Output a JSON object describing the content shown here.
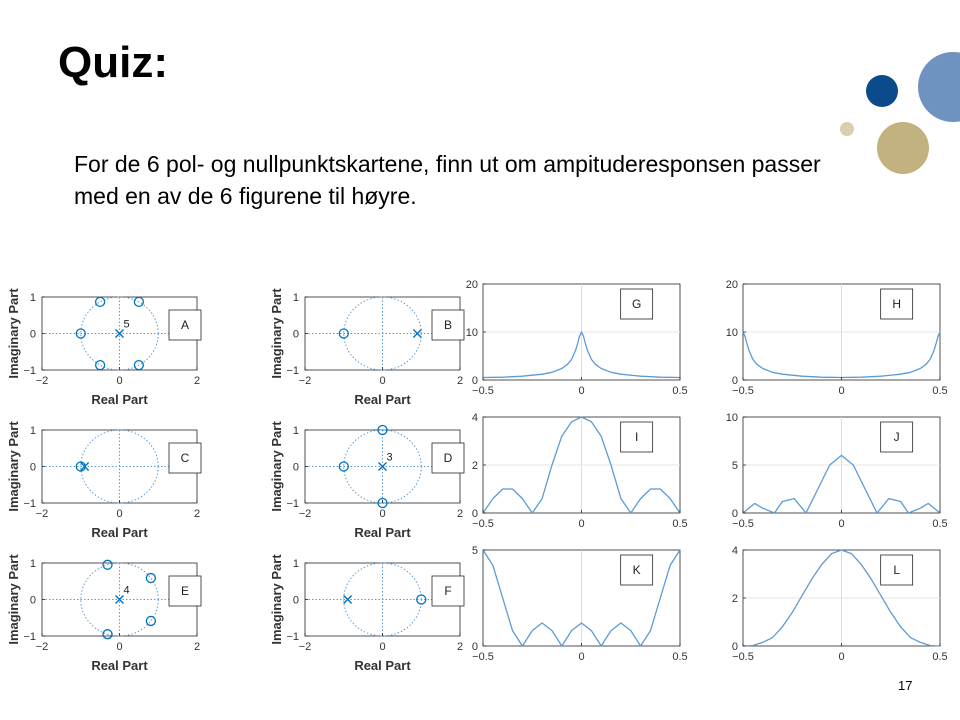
{
  "slide": {
    "title": "Quiz:",
    "instruction": "For de 6 pol- og nullpunktskartene, finn ut om ampituderesponsen passer med en av de 6 figurene til høyre.",
    "page_number": "17"
  },
  "colors": {
    "deco_dark": "#0b4a8b",
    "deco_light": "#6f93c0",
    "deco_tan": "#c2b280",
    "deco_tan_light": "#d8cfae",
    "plot": "#5b9bd5",
    "marker": "#0072bd"
  },
  "chart_data": [
    {
      "type": "pole-zero",
      "label": "A",
      "xlabel": "Real Part",
      "ylabel": "Imaginary Part",
      "xlim": [
        -2,
        2
      ],
      "ylim": [
        -1,
        1
      ],
      "xticks": [
        -2,
        0,
        2
      ],
      "yticks": [
        -1,
        0,
        1
      ],
      "zeros": [
        [
          -1,
          0
        ],
        [
          -0.5,
          0.866
        ],
        [
          0.5,
          0.866
        ],
        [
          0.5,
          -0.866
        ],
        [
          -0.5,
          -0.866
        ]
      ],
      "poles": [
        [
          0,
          0
        ]
      ],
      "pole_multiplicity": "5"
    },
    {
      "type": "pole-zero",
      "label": "B",
      "xlabel": "Real Part",
      "ylabel": "Imaginary Part",
      "xlim": [
        -2,
        2
      ],
      "ylim": [
        -1,
        1
      ],
      "xticks": [
        -2,
        0,
        2
      ],
      "yticks": [
        -1,
        0,
        1
      ],
      "zeros": [
        [
          -1,
          0
        ]
      ],
      "poles": [
        [
          0.9,
          0
        ]
      ],
      "pole_multiplicity": ""
    },
    {
      "type": "pole-zero",
      "label": "C",
      "xlabel": "Real Part",
      "ylabel": "Imaginary Part",
      "xlim": [
        -2,
        2
      ],
      "ylim": [
        -1,
        1
      ],
      "xticks": [
        -2,
        0,
        2
      ],
      "yticks": [
        -1,
        0,
        1
      ],
      "zeros": [
        [
          -1,
          0
        ]
      ],
      "poles": [
        [
          -0.9,
          0
        ]
      ],
      "pole_multiplicity": ""
    },
    {
      "type": "pole-zero",
      "label": "D",
      "xlabel": "Real Part",
      "ylabel": "Imaginary Part",
      "xlim": [
        -2,
        2
      ],
      "ylim": [
        -1,
        1
      ],
      "xticks": [
        -2,
        0,
        2
      ],
      "yticks": [
        -1,
        0,
        1
      ],
      "zeros": [
        [
          -1,
          0
        ],
        [
          0,
          1
        ],
        [
          0,
          -1
        ]
      ],
      "poles": [
        [
          0,
          0
        ]
      ],
      "pole_multiplicity": "3"
    },
    {
      "type": "pole-zero",
      "label": "E",
      "xlabel": "Real Part",
      "ylabel": "Imaginary Part",
      "xlim": [
        -2,
        2
      ],
      "ylim": [
        -1,
        1
      ],
      "xticks": [
        -2,
        0,
        2
      ],
      "yticks": [
        -1,
        0,
        1
      ],
      "zeros": [
        [
          -0.309,
          0.951
        ],
        [
          0.809,
          0.588
        ],
        [
          0.809,
          -0.588
        ],
        [
          -0.309,
          -0.951
        ]
      ],
      "poles": [
        [
          0,
          0
        ]
      ],
      "pole_multiplicity": "4"
    },
    {
      "type": "pole-zero",
      "label": "F",
      "xlabel": "Real Part",
      "ylabel": "Imaginary Part",
      "xlim": [
        -2,
        2
      ],
      "ylim": [
        -1,
        1
      ],
      "xticks": [
        -2,
        0,
        2
      ],
      "yticks": [
        -1,
        0,
        1
      ],
      "zeros": [
        [
          1,
          0
        ]
      ],
      "poles": [
        [
          -0.9,
          0
        ]
      ],
      "pole_multiplicity": ""
    },
    {
      "type": "line",
      "label": "G",
      "xlim": [
        -0.5,
        0.5
      ],
      "ylim": [
        0,
        20
      ],
      "xticks": [
        -0.5,
        0,
        0.5
      ],
      "yticks": [
        0,
        10,
        20
      ],
      "x": [
        -0.5,
        -0.4,
        -0.3,
        -0.2,
        -0.15,
        -0.1,
        -0.07,
        -0.05,
        -0.03,
        -0.02,
        -0.01,
        0,
        0.01,
        0.02,
        0.03,
        0.05,
        0.07,
        0.1,
        0.15,
        0.2,
        0.3,
        0.4,
        0.5
      ],
      "y": [
        0.53,
        0.58,
        0.8,
        1.2,
        1.6,
        2.4,
        3.3,
        4.3,
        6.2,
        7.6,
        9.1,
        10,
        9.1,
        7.6,
        6.2,
        4.3,
        3.3,
        2.4,
        1.6,
        1.2,
        0.8,
        0.58,
        0.53
      ]
    },
    {
      "type": "line",
      "label": "H",
      "xlim": [
        -0.5,
        0.5
      ],
      "ylim": [
        0,
        20
      ],
      "xticks": [
        -0.5,
        0,
        0.5
      ],
      "yticks": [
        0,
        10,
        20
      ],
      "x": [
        -0.5,
        -0.49,
        -0.48,
        -0.47,
        -0.45,
        -0.43,
        -0.4,
        -0.35,
        -0.3,
        -0.2,
        -0.1,
        0,
        0.1,
        0.2,
        0.3,
        0.35,
        0.4,
        0.43,
        0.45,
        0.47,
        0.48,
        0.49,
        0.5
      ],
      "y": [
        10,
        9.1,
        7.6,
        6.2,
        4.3,
        3.3,
        2.4,
        1.6,
        1.2,
        0.8,
        0.58,
        0.53,
        0.58,
        0.8,
        1.2,
        1.6,
        2.4,
        3.3,
        4.3,
        6.2,
        7.6,
        9.1,
        10
      ]
    },
    {
      "type": "line",
      "label": "I",
      "xlim": [
        -0.5,
        0.5
      ],
      "ylim": [
        0,
        4
      ],
      "xticks": [
        -0.5,
        0,
        0.5
      ],
      "yticks": [
        0,
        2,
        4
      ],
      "x": [
        -0.5,
        -0.45,
        -0.4,
        -0.35,
        -0.3,
        -0.25,
        -0.2,
        -0.15,
        -0.1,
        -0.05,
        0,
        0.05,
        0.1,
        0.15,
        0.2,
        0.25,
        0.3,
        0.35,
        0.4,
        0.45,
        0.5
      ],
      "y": [
        0,
        0.6,
        1.0,
        1.0,
        0.6,
        0,
        0.6,
        2.0,
        3.2,
        3.8,
        4.0,
        3.8,
        3.2,
        2.0,
        0.6,
        0,
        0.6,
        1.0,
        1.0,
        0.6,
        0
      ]
    },
    {
      "type": "line",
      "label": "J",
      "xlim": [
        -0.5,
        0.5
      ],
      "ylim": [
        0,
        10
      ],
      "xticks": [
        -0.5,
        0,
        0.5
      ],
      "yticks": [
        0,
        5,
        10
      ],
      "x": [
        -0.5,
        -0.44,
        -0.4,
        -0.34,
        -0.3,
        -0.24,
        -0.18,
        -0.12,
        -0.06,
        0,
        0.06,
        0.12,
        0.18,
        0.24,
        0.3,
        0.34,
        0.4,
        0.44,
        0.5
      ],
      "y": [
        0,
        1.0,
        0.5,
        0,
        1.2,
        1.5,
        0,
        2.5,
        5.0,
        6.0,
        5.0,
        2.5,
        0,
        1.5,
        1.2,
        0,
        0.5,
        1.0,
        0
      ]
    },
    {
      "type": "line",
      "label": "K",
      "xlim": [
        -0.5,
        0.5
      ],
      "ylim": [
        0,
        5
      ],
      "xticks": [
        -0.5,
        0,
        0.5
      ],
      "yticks": [
        0,
        5
      ],
      "x": [
        -0.5,
        -0.45,
        -0.4,
        -0.35,
        -0.3,
        -0.25,
        -0.2,
        -0.15,
        -0.1,
        -0.05,
        0,
        0.05,
        0.1,
        0.15,
        0.2,
        0.25,
        0.3,
        0.35,
        0.4,
        0.45,
        0.5
      ],
      "y": [
        5.0,
        4.2,
        2.5,
        0.8,
        0,
        0.8,
        1.2,
        0.8,
        0,
        0.8,
        1.2,
        0.8,
        0,
        0.8,
        1.2,
        0.8,
        0,
        0.8,
        2.5,
        4.2,
        5.0
      ]
    },
    {
      "type": "line",
      "label": "L",
      "xlim": [
        -0.5,
        0.5
      ],
      "ylim": [
        0,
        4
      ],
      "xticks": [
        -0.5,
        0,
        0.5
      ],
      "yticks": [
        0,
        2,
        4
      ],
      "x": [
        -0.5,
        -0.45,
        -0.4,
        -0.35,
        -0.3,
        -0.25,
        -0.2,
        -0.15,
        -0.1,
        -0.05,
        0,
        0.05,
        0.1,
        0.15,
        0.2,
        0.25,
        0.3,
        0.35,
        0.4,
        0.45,
        0.5
      ],
      "y": [
        0,
        0.02,
        0.15,
        0.35,
        0.8,
        1.4,
        2.1,
        2.8,
        3.4,
        3.85,
        4.0,
        3.85,
        3.4,
        2.8,
        2.1,
        1.4,
        0.8,
        0.35,
        0.15,
        0.02,
        0
      ]
    }
  ]
}
